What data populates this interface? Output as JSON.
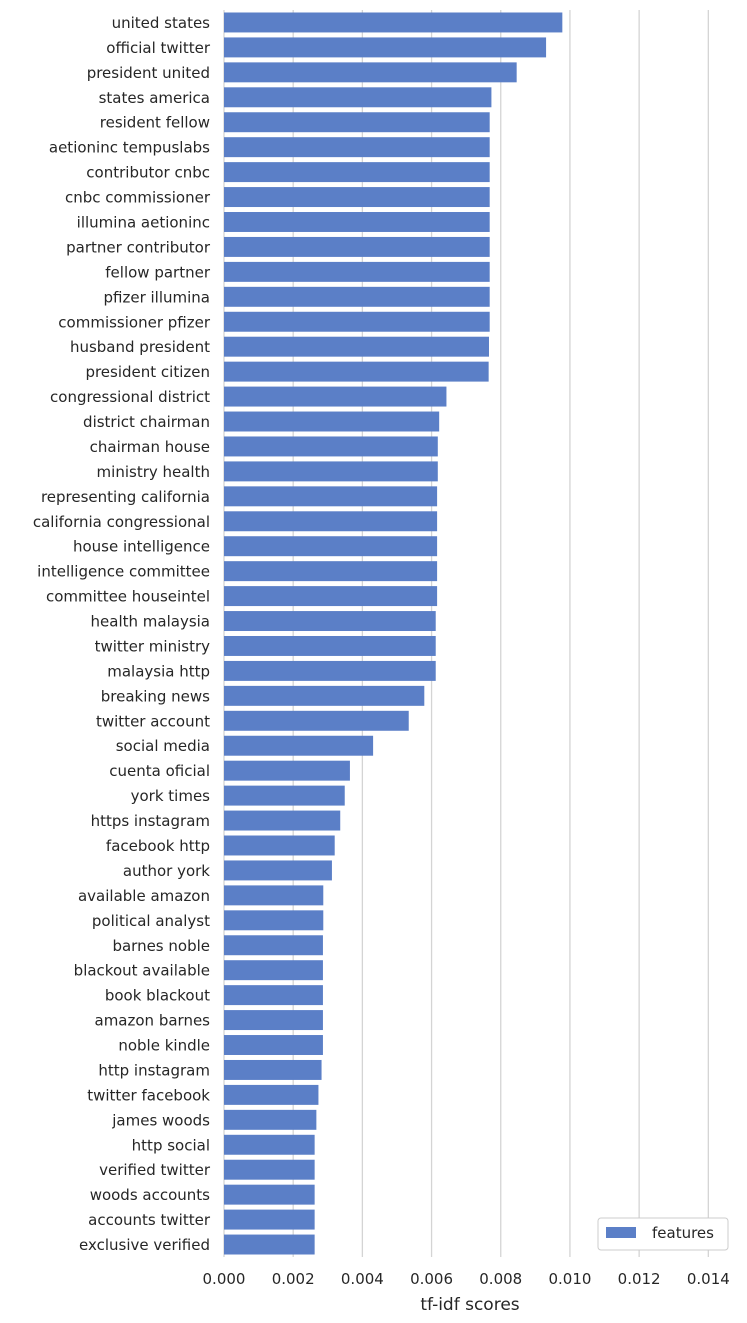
{
  "chart_data": {
    "type": "bar",
    "orientation": "horizontal",
    "xlabel": "tf-idf scores",
    "ylabel": "",
    "xlim": [
      0,
      0.0148
    ],
    "xticks": [
      "0.000",
      "0.002",
      "0.004",
      "0.006",
      "0.008",
      "0.010",
      "0.012",
      "0.014"
    ],
    "grid": "vertical",
    "legend": {
      "position": "bottom-right",
      "entries": [
        "features"
      ]
    },
    "bar_color": "#5b7fc7",
    "categories": [
      "united states",
      "official twitter",
      "president united",
      "states america",
      "resident fellow",
      "aetioninc tempuslabs",
      "contributor cnbc",
      "cnbc commissioner",
      "illumina aetioninc",
      "partner contributor",
      "fellow partner",
      "pfizer illumina",
      "commissioner pfizer",
      "husband president",
      "president citizen",
      "congressional district",
      "district chairman",
      "chairman house",
      "ministry health",
      "representing california",
      "california congressional",
      "house intelligence",
      "intelligence committee",
      "committee houseintel",
      "health malaysia",
      "twitter ministry",
      "malaysia http",
      "breaking news",
      "twitter account",
      "social media",
      "cuenta oficial",
      "york times",
      "https instagram",
      "facebook http",
      "author york",
      "available amazon",
      "political analyst",
      "barnes noble",
      "blackout available",
      "book blackout",
      "amazon barnes",
      "noble kindle",
      "http instagram",
      "twitter facebook",
      "james woods",
      "http social",
      "verified twitter",
      "woods accounts",
      "accounts twitter",
      "exclusive verified"
    ],
    "series": [
      {
        "name": "features",
        "values": [
          0.00978,
          0.00931,
          0.00846,
          0.00773,
          0.00768,
          0.00768,
          0.00768,
          0.00768,
          0.00768,
          0.00768,
          0.00768,
          0.00768,
          0.00768,
          0.00766,
          0.00765,
          0.00643,
          0.00622,
          0.00618,
          0.00618,
          0.00616,
          0.00616,
          0.00616,
          0.00616,
          0.00616,
          0.00612,
          0.00612,
          0.00612,
          0.00579,
          0.00534,
          0.00431,
          0.00364,
          0.00349,
          0.00336,
          0.0032,
          0.00312,
          0.00287,
          0.00287,
          0.00286,
          0.00286,
          0.00286,
          0.00286,
          0.00286,
          0.00282,
          0.00273,
          0.00267,
          0.00262,
          0.00262,
          0.00262,
          0.00262,
          0.00262
        ]
      }
    ]
  }
}
